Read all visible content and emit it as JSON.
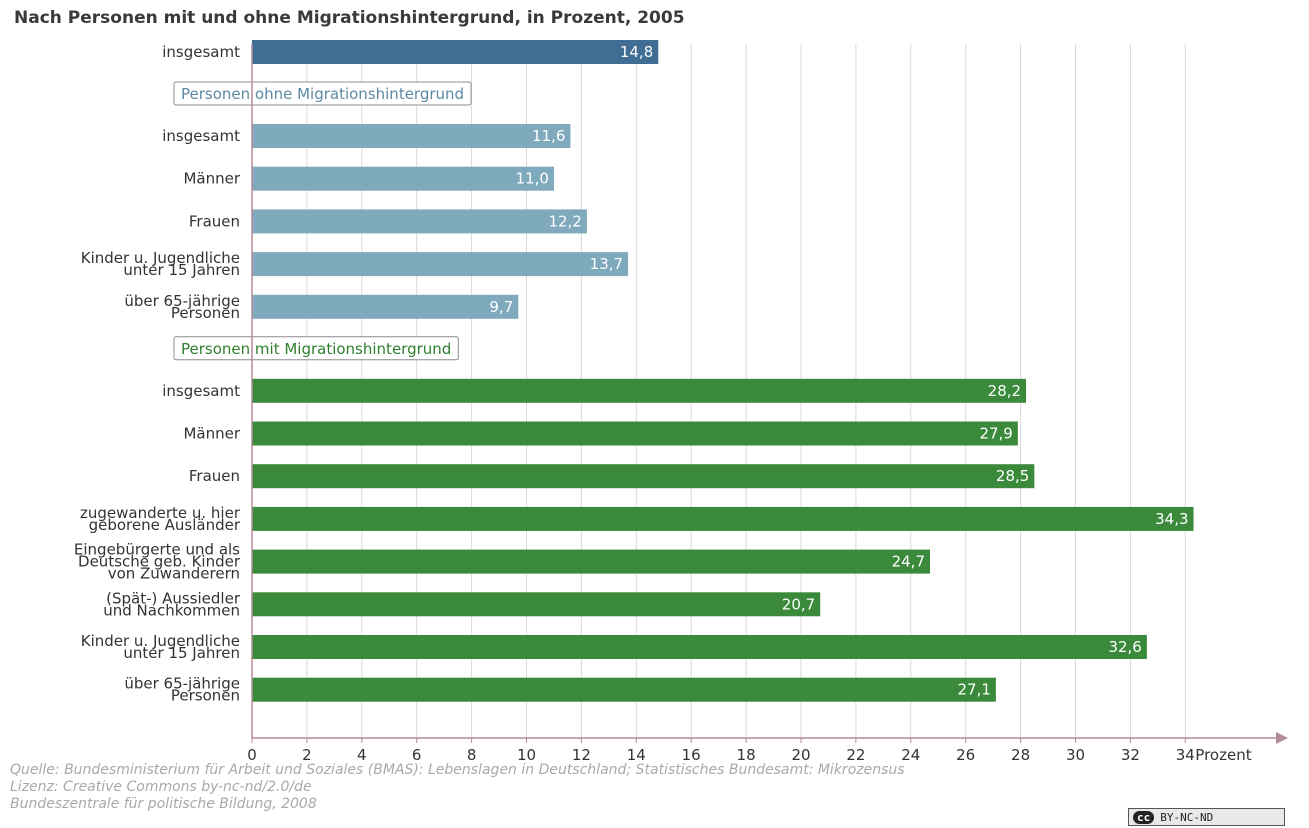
{
  "chart_data": {
    "type": "bar",
    "orientation": "horizontal",
    "title": "Nach Personen mit und ohne Migrationshintergrund, in Prozent, 2005",
    "xlabel": "Prozent",
    "xlim": [
      0,
      36
    ],
    "xticks": [
      0,
      2,
      4,
      6,
      8,
      10,
      12,
      14,
      16,
      18,
      20,
      22,
      24,
      26,
      28,
      30,
      32,
      34
    ],
    "grid": true,
    "colors": {
      "total": "#3f6d93",
      "ohne": "#7fa9bd",
      "mit": "#3b8a3b",
      "ohne_text": "#5d8aa3",
      "mit_text": "#2f7f2f"
    },
    "groups": [
      {
        "label": "",
        "color_key": "total",
        "bars": [
          {
            "label": [
              "insgesamt"
            ],
            "value": 14.8,
            "display": "14,8"
          }
        ]
      },
      {
        "label": "Personen ohne Migrationshintergrund",
        "color_key": "ohne",
        "bars": [
          {
            "label": [
              "insgesamt"
            ],
            "value": 11.6,
            "display": "11,6"
          },
          {
            "label": [
              "Männer"
            ],
            "value": 11.0,
            "display": "11,0"
          },
          {
            "label": [
              "Frauen"
            ],
            "value": 12.2,
            "display": "12,2"
          },
          {
            "label": [
              "Kinder u. Jugendliche",
              "unter 15 Jahren"
            ],
            "value": 13.7,
            "display": "13,7"
          },
          {
            "label": [
              "über 65-jährige",
              "Personen"
            ],
            "value": 9.7,
            "display": "9,7"
          }
        ]
      },
      {
        "label": "Personen mit Migrationshintergrund",
        "color_key": "mit",
        "bars": [
          {
            "label": [
              "insgesamt"
            ],
            "value": 28.2,
            "display": "28,2"
          },
          {
            "label": [
              "Männer"
            ],
            "value": 27.9,
            "display": "27,9"
          },
          {
            "label": [
              "Frauen"
            ],
            "value": 28.5,
            "display": "28,5"
          },
          {
            "label": [
              "zugewanderte u. hier",
              "geborene Ausländer"
            ],
            "value": 34.3,
            "display": "34,3"
          },
          {
            "label": [
              "Eingebürgerte und als",
              "Deutsche geb. Kinder",
              "von Zuwanderern"
            ],
            "value": 24.7,
            "display": "24,7"
          },
          {
            "label": [
              "(Spät-) Aussiedler",
              "und Nachkommen"
            ],
            "value": 20.7,
            "display": "20,7"
          },
          {
            "label": [
              "Kinder u. Jugendliche",
              "unter 15 Jahren"
            ],
            "value": 32.6,
            "display": "32,6"
          },
          {
            "label": [
              "über 65-jährige",
              "Personen"
            ],
            "value": 27.1,
            "display": "27,1"
          }
        ]
      }
    ]
  },
  "footer": {
    "source": "Quelle: Bundesministerium für Arbeit und Soziales (BMAS): Lebenslagen in Deutschland; Statistisches Bundesamt: Mikrozensus",
    "license": "Lizenz: Creative Commons by-nc-nd/2.0/de",
    "publisher": "Bundeszentrale für politische Bildung, 2008",
    "badge_cc": "cc",
    "badge_text": "BY-NC-ND"
  }
}
